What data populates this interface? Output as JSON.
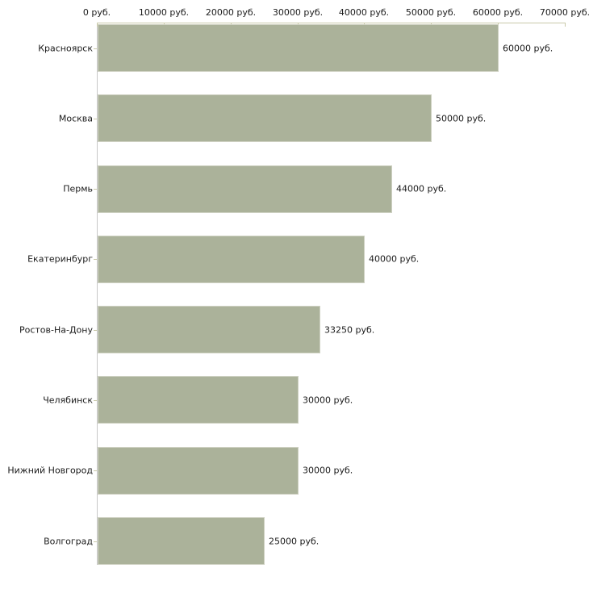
{
  "chart_data": {
    "type": "bar",
    "orientation": "horizontal",
    "title": "",
    "xlabel": "",
    "ylabel": "",
    "unit": "руб.",
    "categories": [
      "Красноярск",
      "Москва",
      "Пермь",
      "Екатеринбург",
      "Ростов-На-Дону",
      "Челябинск",
      "Нижний Новгород",
      "Волгоград"
    ],
    "values": [
      60000,
      50000,
      44000,
      40000,
      33250,
      30000,
      30000,
      25000
    ],
    "value_labels": [
      "60000 руб.",
      "50000 руб.",
      "44000 руб.",
      "40000 руб.",
      "33250 руб.",
      "30000 руб.",
      "30000 руб.",
      "25000 руб."
    ],
    "x_tick_labels": [
      "0 руб.",
      "10000 руб.",
      "20000 руб.",
      "30000 руб.",
      "40000 руб.",
      "50000 руб.",
      "60000 руб.",
      "70000 руб."
    ],
    "xlim": [
      0,
      70000
    ],
    "x_tick_step": 10000,
    "grid": false,
    "legend": false,
    "colors": {
      "bar_fill": "#abb29a",
      "bar_border": "#ced1c2",
      "x_axis_line": "#c9c9a9",
      "x_tick_mark": "#c9c9a9",
      "y_axis_line": "#c8c8c8",
      "category_tick": "#c9c9a9",
      "text": "#1a1a1a",
      "background": "#ffffff"
    }
  }
}
